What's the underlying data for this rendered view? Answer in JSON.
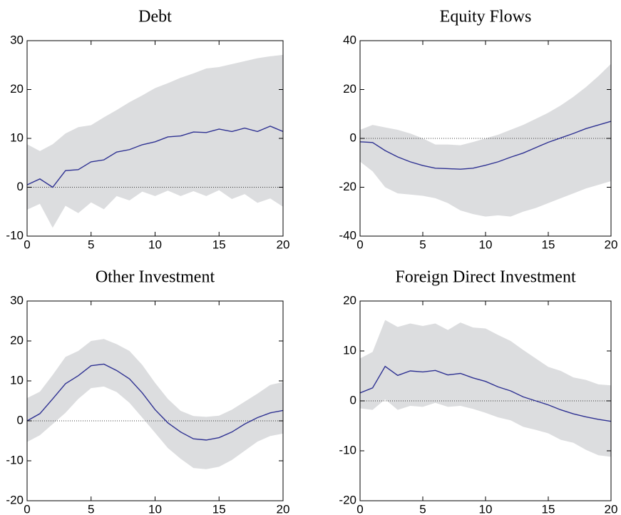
{
  "chart_data": [
    {
      "type": "line",
      "title": "Debt",
      "x": [
        0,
        1,
        2,
        3,
        4,
        5,
        6,
        7,
        8,
        9,
        10,
        11,
        12,
        13,
        14,
        15,
        16,
        17,
        18,
        19,
        20
      ],
      "values": [
        0.5,
        1.7,
        0,
        3.4,
        3.6,
        5.2,
        5.6,
        7.2,
        7.7,
        8.7,
        9.3,
        10.3,
        10.5,
        11.3,
        11.2,
        11.9,
        11.4,
        12.1,
        11.4,
        12.5,
        11.4
      ],
      "upper": [
        8.8,
        7.4,
        8.8,
        11,
        12.3,
        12.7,
        14.3,
        15.8,
        17.4,
        18.8,
        20.3,
        21.3,
        22.4,
        23.3,
        24.3,
        24.6,
        25.2,
        25.8,
        26.4,
        26.8,
        27.1
      ],
      "lower": [
        -4.6,
        -3.4,
        -8.3,
        -3.8,
        -5.3,
        -3.1,
        -4.5,
        -1.8,
        -2.7,
        -0.9,
        -1.8,
        -0.7,
        -1.8,
        -0.8,
        -1.8,
        -0.6,
        -2.4,
        -1.4,
        -3.2,
        -2.3,
        -4.0
      ],
      "color": "#2e3192",
      "band_color": "#dcdddf",
      "reference_line": 0,
      "xlim": [
        0,
        20
      ],
      "xticks": [
        0,
        5,
        10,
        15,
        20
      ],
      "ylim": [
        -10,
        30
      ],
      "yticks": [
        -10,
        0,
        10,
        20,
        30
      ]
    },
    {
      "type": "line",
      "title": "Equity Flows",
      "x": [
        0,
        1,
        2,
        3,
        4,
        5,
        6,
        7,
        8,
        9,
        10,
        11,
        12,
        13,
        14,
        15,
        16,
        17,
        18,
        19,
        20
      ],
      "values": [
        -1.4,
        -1.7,
        -5,
        -7.6,
        -9.6,
        -11.1,
        -12.2,
        -12.4,
        -12.6,
        -12.2,
        -11,
        -9.6,
        -7.7,
        -6,
        -3.8,
        -1.6,
        0.2,
        2,
        4,
        5.5,
        7
      ],
      "upper": [
        3.5,
        5.5,
        4.5,
        3.5,
        2,
        0,
        -2.5,
        -2.5,
        -2.8,
        -1.5,
        0,
        1.5,
        3.5,
        5.5,
        8,
        10.5,
        13.5,
        17,
        21,
        25.5,
        30.5
      ],
      "lower": [
        -9.5,
        -13.5,
        -20,
        -22.5,
        -23,
        -23.5,
        -24.5,
        -26.5,
        -29.5,
        -31,
        -32,
        -31.5,
        -32,
        -30,
        -28.5,
        -26.5,
        -24.5,
        -22.5,
        -20.5,
        -19,
        -17.5
      ],
      "color": "#2e3192",
      "band_color": "#dcdddf",
      "reference_line": 0,
      "xlim": [
        0,
        20
      ],
      "xticks": [
        0,
        5,
        10,
        15,
        20
      ],
      "ylim": [
        -40,
        40
      ],
      "yticks": [
        -40,
        -20,
        0,
        20,
        40
      ]
    },
    {
      "type": "line",
      "title": "Other Investment",
      "x": [
        0,
        1,
        2,
        3,
        4,
        5,
        6,
        7,
        8,
        9,
        10,
        11,
        12,
        13,
        14,
        15,
        16,
        17,
        18,
        19,
        20
      ],
      "values": [
        0,
        1.8,
        5.5,
        9.3,
        11.3,
        13.8,
        14.2,
        12.6,
        10.5,
        7,
        2.8,
        -0.5,
        -2.8,
        -4.5,
        -4.8,
        -4.2,
        -2.8,
        -0.8,
        0.8,
        2,
        2.6
      ],
      "upper": [
        5.7,
        7.3,
        11.5,
        16,
        17.5,
        20,
        20.5,
        19.2,
        17.5,
        14,
        9.5,
        5.5,
        2.5,
        1.2,
        1,
        1.3,
        2.8,
        4.8,
        6.8,
        9,
        9.7
      ],
      "lower": [
        -5.3,
        -3.6,
        -0.8,
        2,
        5.5,
        8.2,
        8.6,
        7.2,
        4.5,
        0.8,
        -3,
        -6.8,
        -9.5,
        -11.8,
        -12.1,
        -11.5,
        -9.8,
        -7.5,
        -5.2,
        -3.8,
        -3.2
      ],
      "color": "#2e3192",
      "band_color": "#dcdddf",
      "reference_line": 0,
      "xlim": [
        0,
        20
      ],
      "xticks": [
        0,
        5,
        10,
        15,
        20
      ],
      "ylim": [
        -20,
        30
      ],
      "yticks": [
        -20,
        -10,
        0,
        10,
        20,
        30
      ]
    },
    {
      "type": "line",
      "title": "Foreign Direct Investment",
      "x": [
        0,
        1,
        2,
        3,
        4,
        5,
        6,
        7,
        8,
        9,
        10,
        11,
        12,
        13,
        14,
        15,
        16,
        17,
        18,
        19,
        20
      ],
      "values": [
        1.6,
        2.6,
        6.9,
        5.1,
        6,
        5.8,
        6.1,
        5.2,
        5.5,
        4.6,
        3.9,
        2.8,
        2,
        0.8,
        0,
        -0.8,
        -1.8,
        -2.6,
        -3.2,
        -3.7,
        -4.1
      ],
      "upper": [
        8.5,
        9.8,
        16.2,
        14.8,
        15.5,
        15,
        15.5,
        14.2,
        15.7,
        14.7,
        14.5,
        13.2,
        12,
        10.2,
        8.5,
        6.8,
        6,
        4.7,
        4.2,
        3.3,
        3.1
      ],
      "lower": [
        -1.5,
        -1.8,
        0.3,
        -1.8,
        -1,
        -1.2,
        -0.4,
        -1.2,
        -1,
        -1.6,
        -2.4,
        -3.3,
        -3.9,
        -5.2,
        -5.8,
        -6.5,
        -7.8,
        -8.4,
        -9.8,
        -10.9,
        -11.2
      ],
      "color": "#2e3192",
      "band_color": "#dcdddf",
      "reference_line": 0,
      "xlim": [
        0,
        20
      ],
      "xticks": [
        0,
        5,
        10,
        15,
        20
      ],
      "ylim": [
        -20,
        20
      ],
      "yticks": [
        -20,
        -10,
        0,
        10,
        20
      ]
    }
  ]
}
